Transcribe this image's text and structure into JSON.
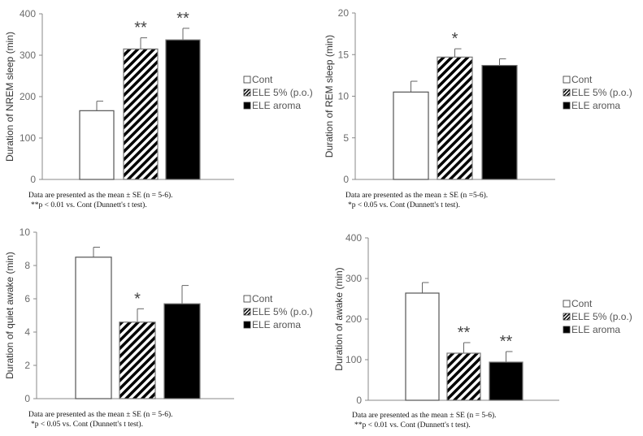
{
  "chart_data": [
    {
      "type": "bar",
      "ylabel": "Duration of NREM sleep (min)",
      "ylim": [
        0,
        400
      ],
      "yticks": [
        0,
        100,
        200,
        300,
        400
      ],
      "categories": [
        "Cont",
        "ELE 5% (p.o.)",
        "ELE aroma"
      ],
      "values": [
        166,
        315,
        337
      ],
      "errors": [
        23,
        27,
        28
      ],
      "significance": [
        "",
        "**",
        "**"
      ],
      "legend": [
        "Cont",
        "ELE 5% (p.o.)",
        "ELE aroma"
      ],
      "legend_position": "right",
      "footnote": [
        "Data are presented as the mean ± SE (n = 5-6).",
        "**p < 0.01 vs. Cont (Dunnett's t test)."
      ]
    },
    {
      "type": "bar",
      "ylabel": "Duration of REM sleep (min)",
      "ylim": [
        0,
        20
      ],
      "yticks": [
        0,
        5,
        10,
        15,
        20
      ],
      "categories": [
        "Cont",
        "ELE 5% (p.o.)",
        "ELE aroma"
      ],
      "values": [
        10.5,
        14.7,
        13.7
      ],
      "errors": [
        1.3,
        1.0,
        0.8
      ],
      "significance": [
        "",
        "*",
        ""
      ],
      "legend": [
        "Cont",
        "ELE 5% (p.o.)",
        "ELE aroma"
      ],
      "legend_position": "right",
      "footnote": [
        "Data are presented as the mean ± SE (n =5-6).",
        "*p < 0.05 vs. Cont (Dunnett's t test)."
      ]
    },
    {
      "type": "bar",
      "ylabel": "Duration of quiet awake (min)",
      "ylim": [
        0,
        10
      ],
      "yticks": [
        0,
        2,
        4,
        6,
        8,
        10
      ],
      "categories": [
        "Cont",
        "ELE 5% (p.o.)",
        "ELE aroma"
      ],
      "values": [
        8.5,
        4.6,
        5.7
      ],
      "errors": [
        0.6,
        0.8,
        1.1
      ],
      "significance": [
        "",
        "*",
        ""
      ],
      "legend": [
        "Cont",
        "ELE 5% (p.o.)",
        "ELE aroma"
      ],
      "legend_position": "right",
      "footnote": [
        "Data are presented as the mean ± SE (n = 5-6).",
        "*p < 0.05 vs. Cont (Dunnett's t test)."
      ]
    },
    {
      "type": "bar",
      "ylabel": "Duration of awake (min)",
      "ylim": [
        0,
        400
      ],
      "yticks": [
        0,
        100,
        200,
        300,
        400
      ],
      "categories": [
        "Cont",
        "ELE 5% (p.o.)",
        "ELE aroma"
      ],
      "values": [
        264,
        116,
        94
      ],
      "errors": [
        26,
        26,
        26
      ],
      "significance": [
        "",
        "**",
        "**"
      ],
      "legend": [
        "Cont",
        "ELE 5% (p.o.)",
        "ELE aroma"
      ],
      "legend_position": "right",
      "footnote": [
        "Data are presented as the mean ± SE (n = 5-6).",
        "**p < 0.01 vs. Cont (Dunnett's t test)."
      ]
    }
  ]
}
